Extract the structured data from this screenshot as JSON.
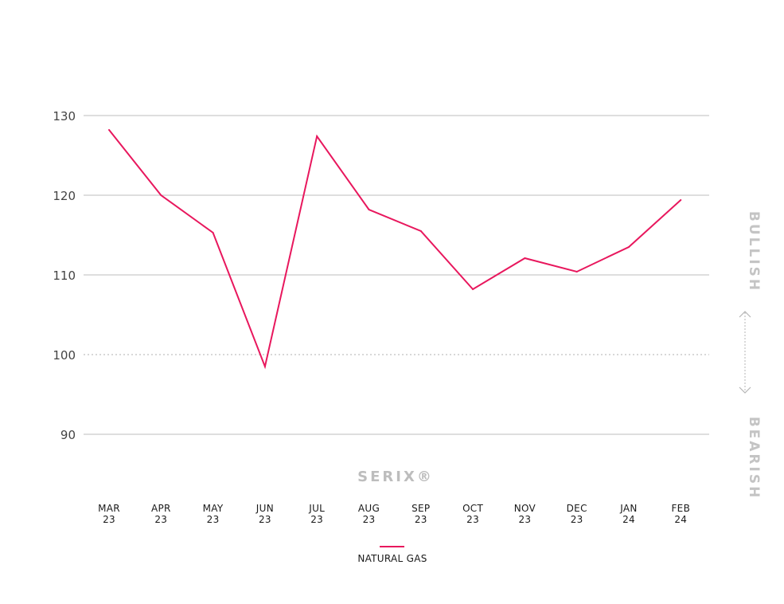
{
  "chart_data": {
    "type": "line",
    "categories": [
      [
        "MAR",
        "23"
      ],
      [
        "APR",
        "23"
      ],
      [
        "MAY",
        "23"
      ],
      [
        "JUN",
        "23"
      ],
      [
        "JUL",
        "23"
      ],
      [
        "AUG",
        "23"
      ],
      [
        "SEP",
        "23"
      ],
      [
        "OCT",
        "23"
      ],
      [
        "NOV",
        "23"
      ],
      [
        "DEC",
        "23"
      ],
      [
        "JAN",
        "24"
      ],
      [
        "FEB",
        "24"
      ]
    ],
    "series": [
      {
        "name": "NATURAL GAS",
        "color": "#e8175d",
        "values": [
          128.2,
          120.0,
          115.3,
          98.5,
          127.4,
          118.2,
          115.5,
          108.2,
          112.1,
          110.4,
          113.5,
          119.4
        ]
      }
    ],
    "yticks": [
      90,
      100,
      110,
      120,
      130
    ],
    "ylim": [
      90,
      130
    ],
    "neutral_line": 100,
    "grid": true,
    "legend_position": "bottom-center",
    "watermark": "SERIX®",
    "side_labels": {
      "top": "BULLISH",
      "bottom": "BEARISH"
    }
  }
}
